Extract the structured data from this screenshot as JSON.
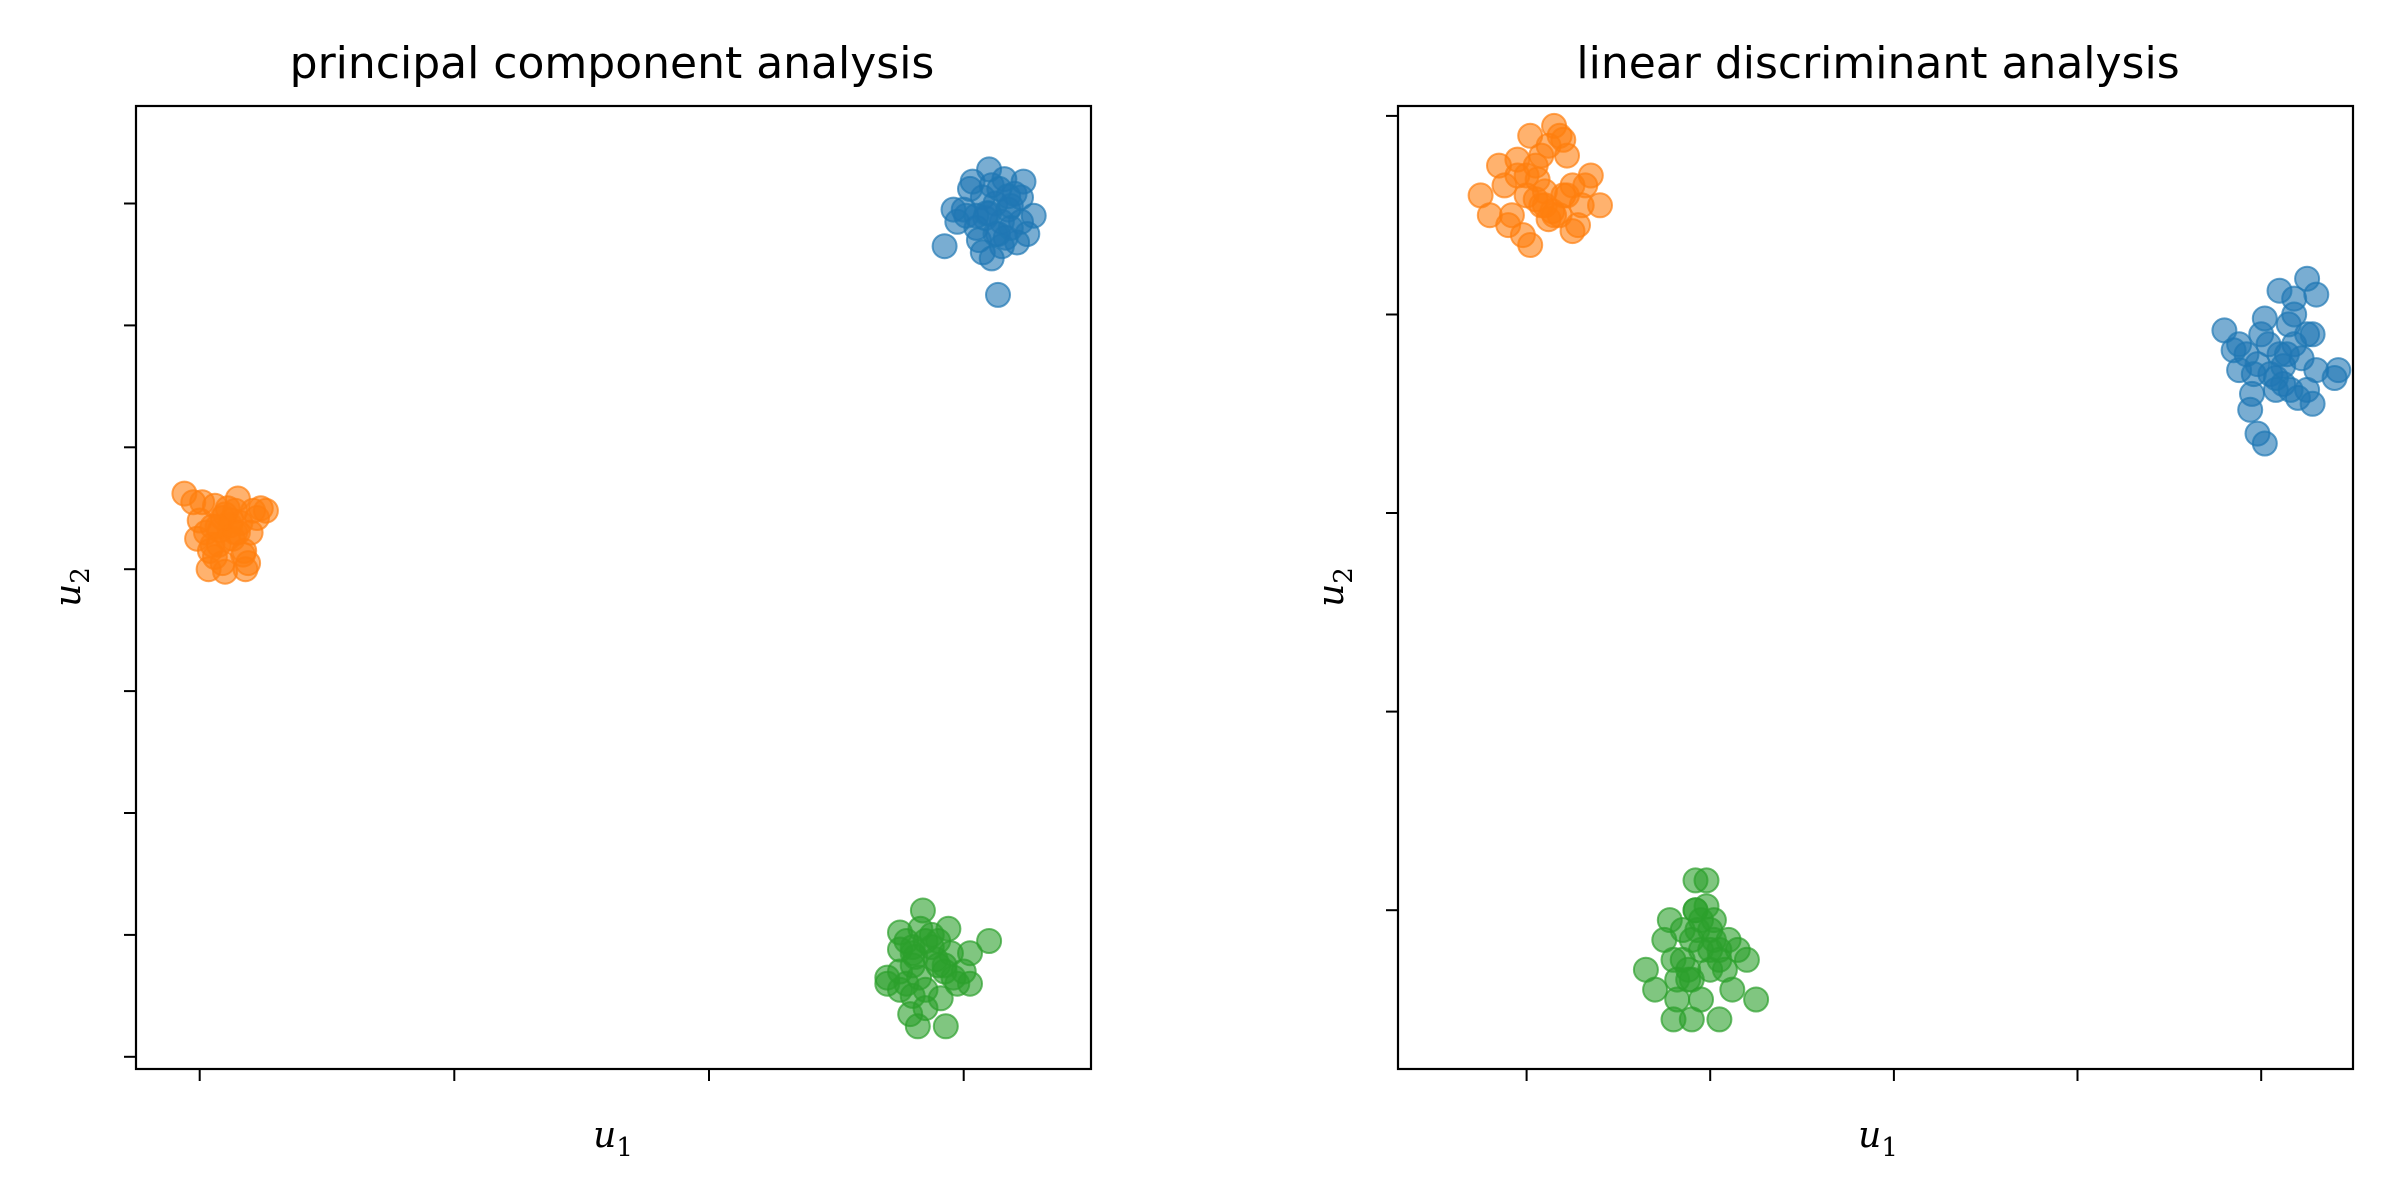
{
  "chart_data": [
    {
      "type": "scatter",
      "title": "principal component analysis",
      "xlabel": "u",
      "xlabel_sub": "1",
      "ylabel": "u",
      "ylabel_sub": "2",
      "xlim": [
        -0.5,
        7.0
      ],
      "ylim": [
        -0.1,
        7.8
      ],
      "xticks": [
        0,
        2,
        4,
        6
      ],
      "yticks": [
        0,
        1,
        2,
        3,
        4,
        5,
        6,
        7
      ],
      "tick_labels_visible": false,
      "grid": false,
      "legend": "none",
      "marker_alpha": 0.6,
      "series": [
        {
          "color": "#1f77b4",
          "x": [
            6.0,
            6.15,
            6.25,
            6.35,
            6.45,
            6.1,
            6.3,
            6.2,
            6.5,
            6.05,
            5.95,
            6.4,
            6.22,
            6.32,
            6.12,
            6.27,
            6.17,
            6.37,
            6.02,
            6.55,
            6.47,
            5.85,
            6.42,
            6.07,
            6.33,
            6.2,
            5.92,
            6.3,
            6.15,
            6.25,
            6.37,
            6.28,
            6.22,
            6.35,
            6.1,
            6.45,
            6.27,
            6.18
          ],
          "y": [
            6.95,
            7.05,
            7.0,
            6.95,
            6.85,
            6.8,
            6.85,
            6.92,
            6.75,
            7.12,
            6.85,
            7.08,
            7.15,
            7.2,
            6.7,
            6.75,
            6.88,
            6.98,
            6.9,
            6.9,
            7.18,
            6.65,
            6.68,
            7.18,
            6.72,
            7.28,
            6.95,
            6.65,
            6.6,
            6.75,
            6.8,
            7.12,
            6.55,
            7.06,
            6.9,
            7.05,
            6.25,
            6.92
          ]
        },
        {
          "color": "#ff7f0e",
          "x": [
            0.1,
            0.2,
            0.3,
            0.15,
            0.25,
            0.05,
            0.35,
            0.0,
            0.22,
            0.12,
            0.4,
            0.18,
            0.28,
            0.08,
            0.32,
            0.45,
            -0.02,
            0.38,
            0.02,
            0.48,
            -0.12,
            -0.05,
            0.2,
            0.16,
            0.42,
            0.26,
            0.12,
            0.3,
            0.07,
            0.52,
            0.22,
            0.34,
            0.1,
            0.24,
            0.18,
            0.28,
            0.14,
            0.36
          ],
          "y": [
            4.35,
            4.45,
            4.3,
            4.2,
            4.4,
            4.3,
            4.15,
            4.4,
            4.5,
            4.52,
            4.3,
            4.05,
            4.48,
            4.15,
            4.38,
            4.42,
            4.25,
            4.05,
            4.55,
            4.5,
            4.62,
            4.55,
            3.98,
            4.32,
            4.48,
            4.25,
            4.1,
            4.58,
            4.0,
            4.48,
            4.25,
            4.12,
            4.2,
            4.36,
            4.42,
            4.3,
            4.35,
            4.0
          ]
        },
        {
          "color": "#2ca02c",
          "x": [
            5.6,
            5.7,
            5.8,
            5.5,
            5.9,
            5.65,
            5.75,
            5.55,
            5.85,
            5.95,
            5.4,
            5.6,
            5.7,
            5.8,
            6.05,
            5.6,
            5.5,
            5.88,
            6.0,
            6.2,
            5.68,
            5.78,
            5.55,
            5.85,
            5.5,
            5.62,
            5.7,
            5.82,
            5.92,
            5.75,
            5.5,
            6.05,
            5.64,
            5.66,
            5.4,
            5.58,
            5.86,
            5.6
          ],
          "y": [
            0.85,
            0.95,
            0.75,
            0.7,
            0.85,
            0.65,
            0.9,
            0.95,
            0.7,
            0.6,
            0.65,
            0.75,
            0.55,
            0.95,
            0.6,
            0.5,
            1.02,
            1.05,
            0.7,
            0.95,
            1.2,
            0.8,
            0.6,
            0.75,
            0.88,
            0.82,
            0.4,
            0.48,
            0.65,
            1.0,
            0.55,
            0.85,
            0.25,
            1.05,
            0.6,
            0.35,
            0.25,
            0.9
          ]
        }
      ]
    },
    {
      "type": "scatter",
      "title": "linear discriminant analysis",
      "xlabel": "u",
      "xlabel_sub": "1",
      "ylabel": "u",
      "ylabel_sub": "2",
      "xlim": [
        -0.7,
        4.5
      ],
      "ylim": [
        -0.8,
        4.05
      ],
      "xticks": [
        0,
        1,
        2,
        3,
        4
      ],
      "yticks": [
        0,
        1,
        2,
        3,
        4
      ],
      "tick_labels_visible": false,
      "grid": false,
      "legend": "none",
      "marker_alpha": 0.6,
      "series": [
        {
          "color": "#1f77b4",
          "x": [
            4.1,
            3.98,
            4.18,
            4.05,
            4.25,
            3.92,
            4.12,
            4.0,
            4.22,
            4.08,
            3.88,
            4.15,
            3.95,
            4.3,
            4.02,
            4.2,
            3.8,
            4.42,
            4.25,
            3.85,
            3.94,
            4.28,
            4.18,
            3.98,
            4.3,
            4.08,
            4.4,
            4.12,
            3.88,
            4.18,
            4.02,
            4.25,
            4.1,
            3.96,
            4.16,
            4.04,
            4.28,
            4.14
          ],
          "y": [
            2.8,
            2.75,
            2.85,
            2.7,
            2.9,
            2.8,
            2.65,
            2.9,
            2.78,
            2.62,
            2.72,
            2.95,
            2.6,
            2.72,
            2.98,
            2.58,
            2.92,
            2.72,
            2.62,
            2.82,
            2.52,
            2.55,
            3.08,
            2.4,
            3.1,
            2.68,
            2.68,
            2.74,
            2.85,
            3.0,
            2.35,
            3.18,
            3.12,
            2.7,
            2.62,
            2.85,
            2.9,
            2.8
          ]
        },
        {
          "color": "#ff7f0e",
          "x": [
            0.0,
            0.1,
            -0.05,
            0.15,
            0.05,
            0.2,
            -0.1,
            0.25,
            0.08,
            -0.02,
            0.3,
            0.12,
            0.18,
            -0.15,
            0.28,
            0.35,
            -0.08,
            0.22,
            0.02,
            0.4,
            -0.25,
            -0.2,
            0.32,
            0.1,
            0.15,
            0.05,
            0.2,
            0.0,
            -0.12,
            0.08,
            0.12,
            0.25,
            0.02,
            -0.05,
            0.14,
            0.22,
            0.06,
            0.18
          ],
          "y": [
            3.6,
            3.55,
            3.7,
            3.5,
            3.75,
            3.6,
            3.45,
            3.65,
            3.8,
            3.4,
            3.55,
            3.85,
            3.9,
            3.75,
            3.45,
            3.7,
            3.5,
            3.8,
            3.35,
            3.55,
            3.6,
            3.5,
            3.65,
            3.62,
            3.95,
            3.58,
            3.88,
            3.7,
            3.65,
            3.55,
            3.48,
            3.42,
            3.9,
            3.78,
            3.52,
            3.6,
            3.68,
            3.5
          ]
        },
        {
          "color": "#2ca02c",
          "x": [
            0.9,
            1.0,
            0.85,
            0.95,
            1.05,
            0.8,
            1.1,
            0.92,
            1.0,
            0.88,
            1.15,
            0.75,
            1.02,
            0.95,
            0.82,
            1.08,
            0.98,
            0.9,
            1.12,
            0.7,
            0.65,
            1.2,
            0.8,
            1.0,
            0.9,
            1.05,
            0.95,
            0.88,
            0.78,
            0.85,
            0.92,
            0.98,
            1.25,
            0.92,
            1.02,
            0.82,
            1.05,
            0.93
          ],
          "y": [
            -0.15,
            -0.2,
            -0.1,
            -0.05,
            -0.25,
            -0.25,
            -0.15,
            0.0,
            -0.3,
            -0.35,
            -0.2,
            -0.15,
            -0.05,
            -0.45,
            -0.45,
            -0.3,
            0.02,
            -0.35,
            -0.4,
            -0.4,
            -0.3,
            -0.25,
            -0.55,
            -0.1,
            -0.55,
            -0.55,
            -0.2,
            -0.3,
            -0.05,
            -0.25,
            0.15,
            0.15,
            -0.45,
            0.0,
            -0.15,
            -0.35,
            -0.2,
            -0.1
          ]
        }
      ]
    }
  ]
}
